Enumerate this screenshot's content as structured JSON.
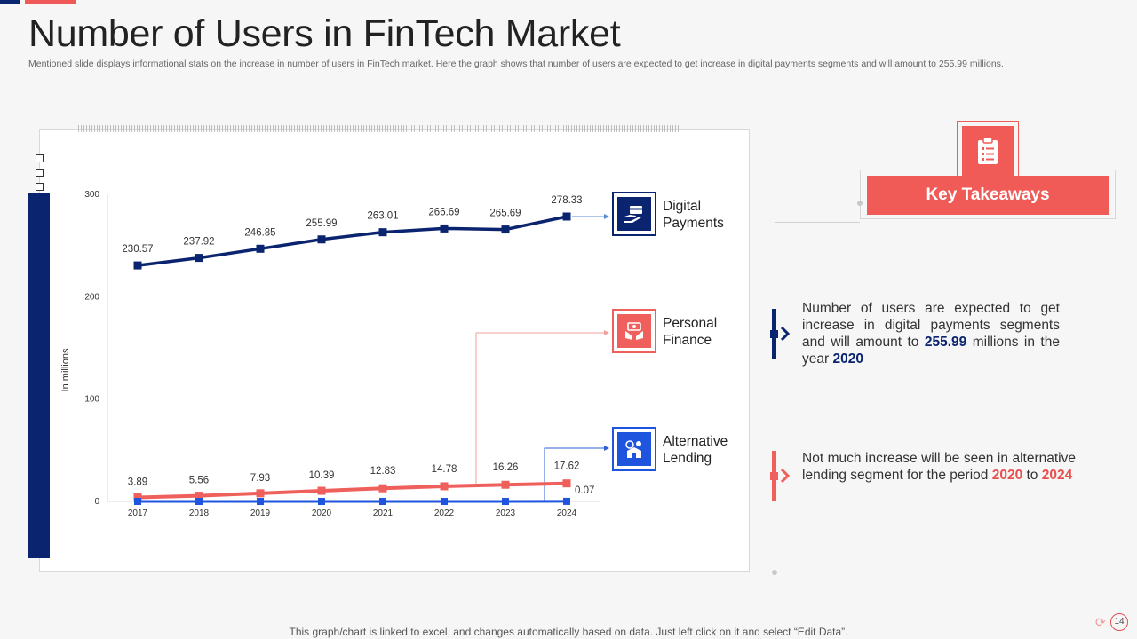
{
  "header": {
    "title": "Number of Users in FinTech Market",
    "subtitle": "Mentioned slide displays informational stats on the increase in number of users in FinTech market. Here the graph shows that number of users are expected to get increase in digital payments segments and will amount to 255.99 millions."
  },
  "chart_data": {
    "type": "line",
    "categories": [
      "2017",
      "2018",
      "2019",
      "2020",
      "2021",
      "2022",
      "2023",
      "2024"
    ],
    "ylabel": "In millions",
    "ylim": [
      0,
      300
    ],
    "yticks": [
      "300",
      "200",
      "100",
      "0"
    ],
    "series": [
      {
        "name": "Digital Payments",
        "values": [
          230.57,
          237.92,
          246.85,
          255.99,
          263.01,
          266.69,
          265.69,
          278.33
        ],
        "labels": [
          "230.57",
          "237.92",
          "246.85",
          "255.99",
          "263.01",
          "266.69",
          "265.69",
          "278.33"
        ],
        "color": "#0b2470"
      },
      {
        "name": "Personal Finance",
        "values": [
          3.89,
          5.56,
          7.93,
          10.39,
          12.83,
          14.78,
          16.26,
          17.62
        ],
        "labels": [
          "3.89",
          "5.56",
          "7.93",
          "10.39",
          "12.83",
          "14.78",
          "16.26",
          "17.62"
        ],
        "color": "#ef5f5c"
      },
      {
        "name": "Alternative Lending",
        "values": [
          0,
          0,
          0,
          0,
          0,
          0,
          0,
          0.07
        ],
        "labels": [
          "",
          "",
          "",
          "",
          "",
          "",
          "",
          "0.07"
        ],
        "color": "#1f55de"
      }
    ]
  },
  "legend": {
    "digital_line1": "Digital",
    "digital_line2": "Payments",
    "personal_line1": "Personal",
    "personal_line2": "Finance",
    "alternative_line1": "Alternative",
    "alternative_line2": "Lending",
    "colors": {
      "digital": "#0b2470",
      "personal": "#ef5f5c",
      "alternative": "#1f55de"
    },
    "icons": {
      "digital": "card-hand-icon",
      "personal": "money-hands-icon",
      "alternative": "lending-icon"
    }
  },
  "takeaways": {
    "heading": "Key Takeaways",
    "heading_icon": "clipboard-icon",
    "item1": {
      "pre": "Number of users are expected to get increase in digital payments segments and will amount to ",
      "value": "255.99",
      "mid": " millions in the year ",
      "year": "2020"
    },
    "item2": {
      "pre": "Not much increase will be seen in alternative lending segment for the period ",
      "year_from": "2020",
      "mid": " to ",
      "year_to": "2024"
    }
  },
  "footer": {
    "note": "This graph/chart is linked to excel, and changes automatically based on data. Just left click on it and select “Edit Data”.",
    "page_number": "14"
  }
}
